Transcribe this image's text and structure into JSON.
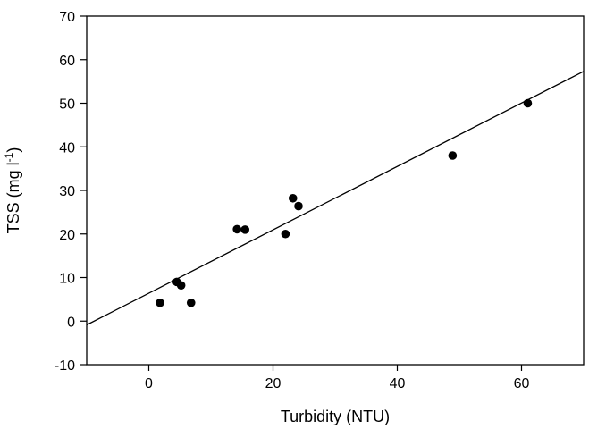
{
  "chart_data": {
    "type": "scatter",
    "title": "",
    "xlabel": "Turbidity (NTU)",
    "ylabel_main": "TSS (mg l",
    "ylabel_superscript": "-1",
    "ylabel_tail": ")",
    "xlim": [
      -10,
      70
    ],
    "ylim": [
      -10,
      70
    ],
    "x_ticks": [
      0,
      20,
      40,
      60
    ],
    "y_ticks": [
      -10,
      0,
      10,
      20,
      30,
      40,
      50,
      60,
      70
    ],
    "grid": false,
    "legend": "none",
    "series": [
      {
        "points": [
          {
            "x": 1.8,
            "y": 4.2
          },
          {
            "x": 4.5,
            "y": 9.0
          },
          {
            "x": 5.2,
            "y": 8.2
          },
          {
            "x": 6.8,
            "y": 4.2
          },
          {
            "x": 14.2,
            "y": 21.1
          },
          {
            "x": 15.5,
            "y": 21.0
          },
          {
            "x": 22.0,
            "y": 20.0
          },
          {
            "x": 23.2,
            "y": 28.2
          },
          {
            "x": 24.1,
            "y": 26.4
          },
          {
            "x": 48.9,
            "y": 38.0
          },
          {
            "x": 61.0,
            "y": 50.0
          }
        ]
      }
    ],
    "fit_line": {
      "x_start": -10,
      "x_end": 70,
      "slope": 0.7275,
      "intercept": 6.4
    },
    "colors": {
      "marker": "#000000",
      "line": "#000000",
      "axis": "#000000"
    }
  }
}
